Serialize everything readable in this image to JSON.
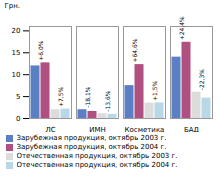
{
  "chart_data": {
    "type": "bar",
    "categories": [
      "ЛС",
      "ИМН",
      "Косметика",
      "БАД"
    ],
    "series": [
      {
        "name": "Зарубежная продукция, октябрь 2003 г.",
        "color": "#5B7FC4",
        "values": [
          12.0,
          2.0,
          7.5,
          14.0
        ]
      },
      {
        "name": "Зарубежная продукция, октябрь 2004 г.",
        "color": "#B05080",
        "values": [
          12.7,
          1.6,
          12.3,
          17.4
        ]
      },
      {
        "name": "Отечественная продукция, октябрь 2003 г.",
        "color": "#DCDCDC",
        "values": [
          2.0,
          1.1,
          3.5,
          6.0
        ]
      },
      {
        "name": "Отечественная продукция, октябрь 2004 г.",
        "color": "#B8D8E8",
        "values": [
          2.15,
          0.95,
          3.55,
          4.65
        ]
      }
    ],
    "ylabel": "Грн.",
    "ylim": [
      0,
      21
    ],
    "yticks": [
      0,
      5,
      10,
      15,
      20
    ],
    "legend": "bottom",
    "annotations": [
      {
        "text": "+6,0%",
        "category": "ЛС",
        "series": [
          "Зарубежная продукция, октябрь 2003 г.",
          "Зарубежная продукция, октябрь 2004 г."
        ]
      },
      {
        "text": "-18,1%",
        "category": "ИМН",
        "series": [
          "Зарубежная продукция, октябрь 2003 г.",
          "Зарубежная продукция, октябрь 2004 г."
        ]
      },
      {
        "text": "+64,6%",
        "category": "Косметика",
        "series": [
          "Зарубежная продукция, октябрь 2003 г.",
          "Зарубежная продукция, октябрь 2004 г."
        ]
      },
      {
        "text": "+24,4%",
        "category": "БАД",
        "series": [
          "Зарубежная продукция, октябрь 2003 г.",
          "Зарубежная продукция, октябрь 2004 г."
        ]
      },
      {
        "text": "+7,5%",
        "category": "ЛС",
        "series": [
          "Отечественная продукция, октябрь 2003 г.",
          "Отечественная продукция, октябрь 2004 г."
        ]
      },
      {
        "text": "-13,6%",
        "category": "ИМН",
        "series": [
          "Отечественная продукция, октябрь 2003 г.",
          "Отечественная продукция, октябрь 2004 г."
        ]
      },
      {
        "text": "+1,5%",
        "category": "Косметика",
        "series": [
          "Отечественная продукция, октябрь 2003 г.",
          "Отечественная продукция, октябрь 2004 г."
        ]
      },
      {
        "text": "-22,3%",
        "category": "БАД",
        "series": [
          "Отечественная продукция, октябрь 2003 г.",
          "Отечественная продукция, октябрь 2004 г."
        ]
      }
    ]
  }
}
